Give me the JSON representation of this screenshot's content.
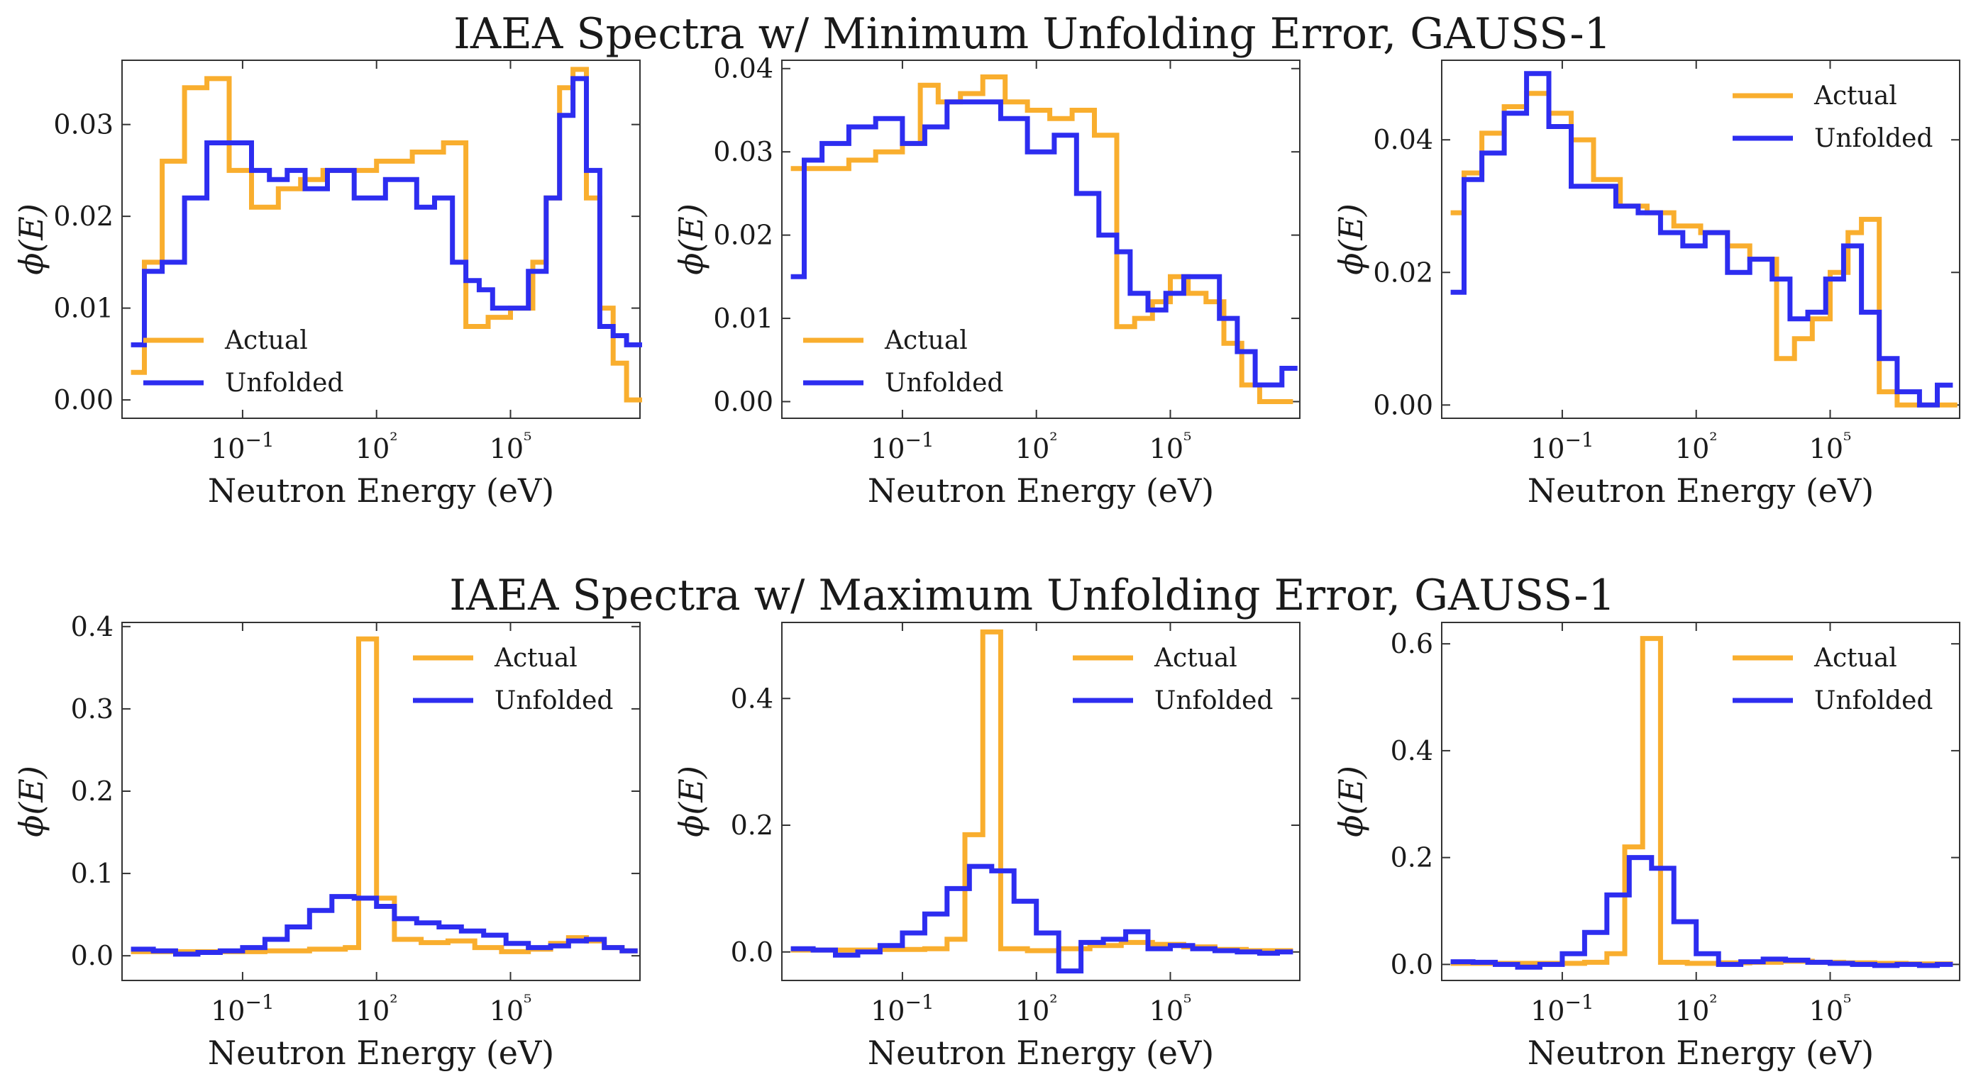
{
  "figure": {
    "row_titles": [
      "IAEA Spectra w/ Minimum Unfolding Error, GAUSS-1",
      "IAEA Spectra w/ Maximum Unfolding Error, GAUSS-1"
    ]
  },
  "colors": {
    "actual": "#F9AE2E",
    "unfolded": "#2D2DF0"
  },
  "chart_data": [
    {
      "type": "line",
      "step": true,
      "row": 0,
      "col": 0,
      "xlabel": "Neutron Energy (eV)",
      "ylabel": "ϕ(E)",
      "xscale": "log",
      "xlim": [
        -3.7,
        7.9
      ],
      "ylim": [
        -0.002,
        0.037
      ],
      "yticks": [
        0.0,
        0.01,
        0.02,
        0.03
      ],
      "ytick_labels": [
        "0.00",
        "0.01",
        "0.02",
        "0.03"
      ],
      "xticks": [
        -1,
        2,
        5
      ],
      "xtick_labels": [
        "10−1",
        "10²",
        "10⁵"
      ],
      "legend": "lower-left",
      "series": [
        {
          "name": "Actual",
          "x": [
            -3.5,
            -3.2,
            -2.8,
            -2.3,
            -1.8,
            -1.3,
            -0.8,
            -0.2,
            0.3,
            0.8,
            1.3,
            2,
            2.8,
            3.5,
            4,
            4.5,
            5,
            5.5,
            5.8,
            6.1,
            6.4,
            6.7,
            7,
            7.3,
            7.6
          ],
          "y": [
            0.003,
            0.015,
            0.026,
            0.034,
            0.035,
            0.025,
            0.021,
            0.023,
            0.024,
            0.025,
            0.025,
            0.026,
            0.027,
            0.028,
            0.008,
            0.009,
            0.01,
            0.015,
            0.022,
            0.034,
            0.036,
            0.022,
            0.01,
            0.004,
            0.0
          ]
        },
        {
          "name": "Unfolded",
          "x": [
            -3.5,
            -3.2,
            -2.8,
            -2.3,
            -1.8,
            -1.3,
            -0.8,
            -0.4,
            0,
            0.4,
            0.9,
            1.5,
            2.2,
            2.9,
            3.3,
            3.7,
            4,
            4.3,
            4.6,
            5,
            5.4,
            5.8,
            6.1,
            6.4,
            6.7,
            7,
            7.3,
            7.6
          ],
          "y": [
            0.006,
            0.014,
            0.015,
            0.022,
            0.028,
            0.028,
            0.025,
            0.024,
            0.025,
            0.023,
            0.025,
            0.022,
            0.024,
            0.021,
            0.022,
            0.015,
            0.013,
            0.012,
            0.01,
            0.01,
            0.014,
            0.022,
            0.031,
            0.035,
            0.025,
            0.008,
            0.007,
            0.006
          ]
        }
      ]
    },
    {
      "type": "line",
      "step": true,
      "row": 0,
      "col": 1,
      "xlabel": "Neutron Energy (eV)",
      "ylabel": "ϕ(E)",
      "xscale": "log",
      "xlim": [
        -3.7,
        7.9
      ],
      "ylim": [
        -0.002,
        0.041
      ],
      "yticks": [
        0.0,
        0.01,
        0.02,
        0.03,
        0.04
      ],
      "ytick_labels": [
        "0.00",
        "0.01",
        "0.02",
        "0.03",
        "0.04"
      ],
      "xticks": [
        -1,
        2,
        5
      ],
      "xtick_labels": [
        "10−1",
        "10²",
        "10⁵"
      ],
      "legend": "lower-left",
      "series": [
        {
          "name": "Actual",
          "x": [
            -3.5,
            -2.8,
            -2.2,
            -1.6,
            -1,
            -0.6,
            -0.2,
            0.3,
            0.8,
            1.3,
            1.8,
            2.3,
            2.8,
            3.3,
            3.8,
            4.2,
            4.6,
            5,
            5.4,
            5.8,
            6.2,
            6.6,
            7,
            7.4
          ],
          "y": [
            0.028,
            0.028,
            0.029,
            0.03,
            0.031,
            0.038,
            0.036,
            0.037,
            0.039,
            0.036,
            0.035,
            0.034,
            0.035,
            0.032,
            0.009,
            0.01,
            0.012,
            0.015,
            0.013,
            0.012,
            0.007,
            0.002,
            0.0,
            0.0
          ]
        },
        {
          "name": "Unfolded",
          "x": [
            -3.5,
            -3.2,
            -2.8,
            -2.2,
            -1.6,
            -1,
            -0.5,
            0,
            0.6,
            1.2,
            1.8,
            2.4,
            2.9,
            3.4,
            3.8,
            4.1,
            4.5,
            4.9,
            5.3,
            5.7,
            6.1,
            6.5,
            6.9,
            7.2,
            7.5
          ],
          "y": [
            0.015,
            0.029,
            0.031,
            0.033,
            0.034,
            0.031,
            0.033,
            0.036,
            0.036,
            0.034,
            0.03,
            0.032,
            0.025,
            0.02,
            0.018,
            0.013,
            0.011,
            0.013,
            0.015,
            0.015,
            0.01,
            0.006,
            0.002,
            0.002,
            0.004
          ]
        }
      ]
    },
    {
      "type": "line",
      "step": true,
      "row": 0,
      "col": 2,
      "xlabel": "Neutron Energy (eV)",
      "ylabel": "ϕ(E)",
      "xscale": "log",
      "xlim": [
        -3.7,
        7.9
      ],
      "ylim": [
        -0.002,
        0.052
      ],
      "yticks": [
        0.0,
        0.02,
        0.04
      ],
      "ytick_labels": [
        "0.00",
        "0.02",
        "0.04"
      ],
      "xticks": [
        -1,
        2,
        5
      ],
      "xtick_labels": [
        "10−1",
        "10²",
        "10⁵"
      ],
      "legend": "upper-right",
      "series": [
        {
          "name": "Actual",
          "x": [
            -3.5,
            -3.2,
            -2.8,
            -2.3,
            -1.8,
            -1.3,
            -0.8,
            -0.3,
            0.3,
            0.9,
            1.5,
            2.1,
            2.7,
            3.2,
            3.8,
            4.2,
            4.6,
            5,
            5.4,
            5.7,
            6.1,
            6.5,
            7,
            7.5
          ],
          "y": [
            0.029,
            0.035,
            0.041,
            0.045,
            0.047,
            0.044,
            0.04,
            0.034,
            0.03,
            0.029,
            0.027,
            0.026,
            0.024,
            0.022,
            0.007,
            0.01,
            0.013,
            0.02,
            0.026,
            0.028,
            0.002,
            0.0,
            0.0,
            0.0
          ]
        },
        {
          "name": "Unfolded",
          "x": [
            -3.5,
            -3.2,
            -2.8,
            -2.3,
            -1.8,
            -1.3,
            -0.8,
            -0.3,
            0.2,
            0.7,
            1.2,
            1.7,
            2.2,
            2.7,
            3.2,
            3.7,
            4.1,
            4.5,
            4.9,
            5.3,
            5.7,
            6.1,
            6.5,
            7,
            7.4
          ],
          "y": [
            0.017,
            0.034,
            0.038,
            0.044,
            0.05,
            0.042,
            0.033,
            0.033,
            0.03,
            0.029,
            0.026,
            0.024,
            0.026,
            0.02,
            0.022,
            0.019,
            0.013,
            0.014,
            0.019,
            0.024,
            0.014,
            0.007,
            0.002,
            0.0,
            0.003
          ]
        }
      ]
    },
    {
      "type": "line",
      "step": true,
      "row": 1,
      "col": 0,
      "xlabel": "Neutron Energy (eV)",
      "ylabel": "ϕ(E)",
      "xscale": "log",
      "xlim": [
        -3.7,
        7.9
      ],
      "ylim": [
        -0.03,
        0.405
      ],
      "yticks": [
        0.0,
        0.1,
        0.2,
        0.3,
        0.4
      ],
      "ytick_labels": [
        "0.0",
        "0.1",
        "0.2",
        "0.3",
        "0.4"
      ],
      "xticks": [
        -1,
        2,
        5
      ],
      "xtick_labels": [
        "10−1",
        "10²",
        "10⁵"
      ],
      "legend": "upper-right",
      "series": [
        {
          "name": "Actual",
          "x": [
            -3.5,
            -2.5,
            -1.5,
            -0.5,
            0.5,
            1.3,
            1.6,
            2,
            2.4,
            3,
            3.6,
            4.2,
            4.8,
            5.4,
            5.9,
            6.3,
            6.7,
            7.1,
            7.5
          ],
          "y": [
            0.005,
            0.005,
            0.005,
            0.006,
            0.008,
            0.01,
            0.385,
            0.07,
            0.02,
            0.016,
            0.018,
            0.01,
            0.005,
            0.008,
            0.015,
            0.022,
            0.018,
            0.01,
            0.006
          ]
        },
        {
          "name": "Unfolded",
          "x": [
            -3.5,
            -3,
            -2.5,
            -2,
            -1.5,
            -1,
            -0.5,
            0,
            0.5,
            1,
            1.5,
            2,
            2.4,
            2.9,
            3.4,
            3.9,
            4.4,
            4.9,
            5.4,
            5.9,
            6.3,
            6.7,
            7.1,
            7.5
          ],
          "y": [
            0.008,
            0.006,
            0.002,
            0.004,
            0.006,
            0.01,
            0.02,
            0.035,
            0.055,
            0.072,
            0.07,
            0.06,
            0.045,
            0.04,
            0.035,
            0.03,
            0.025,
            0.015,
            0.01,
            0.012,
            0.018,
            0.02,
            0.01,
            0.006
          ]
        }
      ]
    },
    {
      "type": "line",
      "step": true,
      "row": 1,
      "col": 1,
      "xlabel": "Neutron Energy (eV)",
      "ylabel": "ϕ(E)",
      "xscale": "log",
      "xlim": [
        -3.7,
        7.9
      ],
      "ylim": [
        -0.045,
        0.52
      ],
      "yticks": [
        0.0,
        0.2,
        0.4
      ],
      "ytick_labels": [
        "0.0",
        "0.2",
        "0.4"
      ],
      "xticks": [
        -1,
        2,
        5
      ],
      "xtick_labels": [
        "10−1",
        "10²",
        "10⁵"
      ],
      "legend": "upper-right",
      "series": [
        {
          "name": "Actual",
          "x": [
            -3.5,
            -2.5,
            -1.5,
            -0.5,
            0,
            0.4,
            0.8,
            1.2,
            1.8,
            2.5,
            3.2,
            3.9,
            4.6,
            5.3,
            6,
            6.7,
            7.4
          ],
          "y": [
            0.003,
            0.003,
            0.004,
            0.005,
            0.02,
            0.185,
            0.505,
            0.005,
            0.002,
            0.005,
            0.01,
            0.015,
            0.012,
            0.008,
            0.004,
            0.002,
            0.002
          ]
        },
        {
          "name": "Unfolded",
          "x": [
            -3.5,
            -3,
            -2.5,
            -2,
            -1.5,
            -1,
            -0.5,
            0,
            0.5,
            1,
            1.5,
            2,
            2.5,
            3,
            3.5,
            4,
            4.5,
            5,
            5.5,
            6,
            6.5,
            7,
            7.4
          ],
          "y": [
            0.005,
            0.003,
            -0.005,
            0.0,
            0.01,
            0.03,
            0.06,
            0.1,
            0.135,
            0.128,
            0.08,
            0.03,
            -0.03,
            0.015,
            0.02,
            0.032,
            0.005,
            0.01,
            0.005,
            0.002,
            0.0,
            -0.002,
            0.0
          ]
        }
      ]
    },
    {
      "type": "line",
      "step": true,
      "row": 1,
      "col": 2,
      "xlabel": "Neutron Energy (eV)",
      "ylabel": "ϕ(E)",
      "xscale": "log",
      "xlim": [
        -3.7,
        7.9
      ],
      "ylim": [
        -0.03,
        0.64
      ],
      "yticks": [
        0.0,
        0.2,
        0.4,
        0.6
      ],
      "ytick_labels": [
        "0.0",
        "0.2",
        "0.4",
        "0.6"
      ],
      "xticks": [
        -1,
        2,
        5
      ],
      "xtick_labels": [
        "10−1",
        "10²",
        "10⁵"
      ],
      "legend": "upper-right",
      "series": [
        {
          "name": "Actual",
          "x": [
            -3.5,
            -2.5,
            -1.5,
            -0.5,
            0,
            0.4,
            0.8,
            1.2,
            1.8,
            2.5,
            3.2,
            3.9,
            4.6,
            5.3,
            6,
            6.7,
            7.4
          ],
          "y": [
            0.002,
            0.002,
            0.002,
            0.004,
            0.02,
            0.22,
            0.61,
            0.004,
            0.002,
            0.003,
            0.004,
            0.006,
            0.004,
            0.003,
            0.002,
            0.001,
            0.001
          ]
        },
        {
          "name": "Unfolded",
          "x": [
            -3.5,
            -3,
            -2.5,
            -2,
            -1.5,
            -1,
            -0.5,
            0,
            0.5,
            1,
            1.5,
            2,
            2.5,
            3,
            3.5,
            4,
            4.5,
            5,
            5.5,
            6,
            6.5,
            7,
            7.4
          ],
          "y": [
            0.005,
            0.004,
            0.0,
            -0.005,
            0.0,
            0.02,
            0.06,
            0.13,
            0.2,
            0.18,
            0.08,
            0.02,
            0.0,
            0.005,
            0.01,
            0.008,
            0.004,
            0.002,
            0.0,
            -0.002,
            0.0,
            -0.002,
            0.0
          ]
        }
      ]
    }
  ]
}
